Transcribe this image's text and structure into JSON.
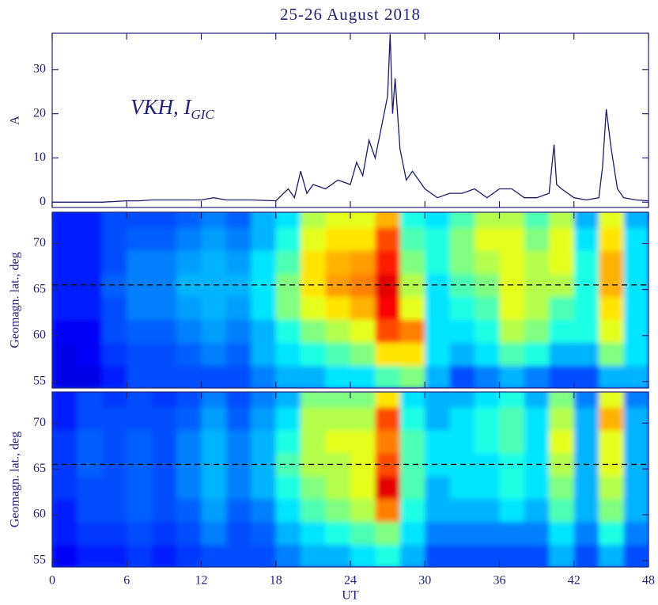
{
  "chart_data": [
    {
      "type": "line",
      "title": "25-26 August 2018",
      "ylabel": "A",
      "annotation": {
        "text": "VKH, I",
        "subscript": "GIC"
      },
      "xlim": [
        0,
        48
      ],
      "ylim": [
        -1.2,
        38.2
      ],
      "yticks": [
        0,
        10,
        20,
        30
      ],
      "color": "#1c1c6b",
      "x": [
        0,
        2,
        4,
        6,
        7,
        8,
        10,
        12,
        13,
        14,
        16,
        18,
        19,
        19.5,
        20,
        20.5,
        21,
        22,
        23,
        24,
        24.5,
        25,
        25.5,
        26,
        26.5,
        27,
        27.2,
        27.4,
        27.6,
        28,
        28.5,
        29,
        30,
        31,
        32,
        33,
        34,
        35,
        36,
        37,
        38,
        39,
        40,
        40.4,
        40.6,
        41,
        42,
        43,
        44,
        44.3,
        44.6,
        45,
        45.5,
        46,
        47,
        48
      ],
      "values": [
        0,
        0,
        0,
        0.3,
        0.3,
        0.5,
        0.5,
        0.5,
        1,
        0.5,
        0.5,
        0.3,
        3,
        1,
        7,
        2,
        4,
        3,
        5,
        4,
        9,
        6,
        14,
        10,
        17,
        24,
        38,
        20,
        28,
        12,
        5,
        7,
        3,
        1,
        2,
        2,
        3,
        1,
        3,
        3,
        1,
        1,
        2,
        13,
        4,
        3,
        1,
        0.5,
        1,
        8,
        21,
        12,
        3,
        1,
        0.5,
        0.3
      ]
    },
    {
      "type": "heatmap",
      "ylabel": "Geomagn. lat., deg",
      "xlim": [
        0,
        48
      ],
      "ylim": [
        54.3,
        73.4
      ],
      "yticks": [
        55,
        60,
        65,
        70
      ],
      "hline": 65.5,
      "colormap": "jet",
      "zlim": [
        0,
        1
      ],
      "x": [
        1,
        3,
        5,
        7,
        9,
        11,
        13,
        15,
        17,
        19,
        21,
        23,
        25,
        27,
        29,
        31,
        33,
        35,
        37,
        39,
        41,
        43,
        45,
        47
      ],
      "y": [
        55.5,
        58,
        60.5,
        63,
        65.5,
        68,
        70.5,
        73
      ],
      "values": [
        [
          0.1,
          0.1,
          0.15,
          0.2,
          0.2,
          0.2,
          0.2,
          0.2,
          0.25,
          0.3,
          0.3,
          0.35,
          0.35,
          0.45,
          0.5,
          0.3,
          0.2,
          0.25,
          0.3,
          0.25,
          0.2,
          0.2,
          0.3,
          0.3
        ],
        [
          0.1,
          0.12,
          0.18,
          0.2,
          0.2,
          0.22,
          0.25,
          0.22,
          0.3,
          0.35,
          0.4,
          0.45,
          0.5,
          0.65,
          0.65,
          0.35,
          0.3,
          0.35,
          0.45,
          0.4,
          0.3,
          0.3,
          0.5,
          0.35
        ],
        [
          0.12,
          0.12,
          0.2,
          0.22,
          0.22,
          0.25,
          0.28,
          0.25,
          0.3,
          0.4,
          0.5,
          0.55,
          0.6,
          0.8,
          0.75,
          0.35,
          0.35,
          0.4,
          0.55,
          0.5,
          0.4,
          0.4,
          0.6,
          0.35
        ],
        [
          0.15,
          0.15,
          0.2,
          0.25,
          0.25,
          0.28,
          0.3,
          0.28,
          0.35,
          0.5,
          0.6,
          0.65,
          0.7,
          0.88,
          0.6,
          0.35,
          0.4,
          0.45,
          0.6,
          0.55,
          0.45,
          0.4,
          0.65,
          0.35
        ],
        [
          0.15,
          0.15,
          0.22,
          0.25,
          0.25,
          0.3,
          0.3,
          0.3,
          0.35,
          0.5,
          0.65,
          0.72,
          0.75,
          0.9,
          0.55,
          0.35,
          0.45,
          0.5,
          0.6,
          0.55,
          0.55,
          0.4,
          0.7,
          0.35
        ],
        [
          0.15,
          0.15,
          0.2,
          0.25,
          0.25,
          0.28,
          0.3,
          0.28,
          0.35,
          0.45,
          0.65,
          0.7,
          0.72,
          0.85,
          0.5,
          0.4,
          0.5,
          0.55,
          0.6,
          0.55,
          0.6,
          0.4,
          0.7,
          0.35
        ],
        [
          0.15,
          0.15,
          0.2,
          0.22,
          0.22,
          0.25,
          0.28,
          0.25,
          0.3,
          0.4,
          0.6,
          0.65,
          0.65,
          0.8,
          0.45,
          0.4,
          0.5,
          0.6,
          0.6,
          0.5,
          0.6,
          0.35,
          0.65,
          0.35
        ],
        [
          0.15,
          0.15,
          0.2,
          0.2,
          0.2,
          0.22,
          0.25,
          0.22,
          0.3,
          0.35,
          0.55,
          0.6,
          0.6,
          0.7,
          0.4,
          0.35,
          0.45,
          0.55,
          0.55,
          0.45,
          0.55,
          0.3,
          0.6,
          0.3
        ]
      ]
    },
    {
      "type": "heatmap",
      "ylabel": "Geomagn. lat., deg",
      "xlabel": "UT",
      "xlim": [
        0,
        48
      ],
      "ylim": [
        54.3,
        73.4
      ],
      "xticks": [
        0,
        6,
        12,
        18,
        24,
        30,
        36,
        42,
        48
      ],
      "yticks": [
        55,
        60,
        65,
        70
      ],
      "hline": 65.5,
      "colormap": "jet",
      "zlim": [
        0,
        1
      ],
      "x": [
        1,
        3,
        5,
        7,
        9,
        11,
        13,
        15,
        17,
        19,
        21,
        23,
        25,
        27,
        29,
        31,
        33,
        35,
        37,
        39,
        41,
        43,
        45,
        47
      ],
      "y": [
        55.5,
        58,
        60.5,
        63,
        65.5,
        68,
        70.5,
        73
      ],
      "values": [
        [
          0.12,
          0.15,
          0.15,
          0.18,
          0.15,
          0.18,
          0.2,
          0.2,
          0.2,
          0.25,
          0.3,
          0.3,
          0.35,
          0.4,
          0.3,
          0.2,
          0.2,
          0.2,
          0.2,
          0.2,
          0.3,
          0.2,
          0.3,
          0.2
        ],
        [
          0.15,
          0.18,
          0.18,
          0.2,
          0.18,
          0.2,
          0.25,
          0.2,
          0.22,
          0.3,
          0.35,
          0.4,
          0.45,
          0.5,
          0.35,
          0.25,
          0.25,
          0.25,
          0.25,
          0.25,
          0.35,
          0.25,
          0.4,
          0.25
        ],
        [
          0.15,
          0.2,
          0.2,
          0.22,
          0.2,
          0.22,
          0.28,
          0.22,
          0.25,
          0.35,
          0.45,
          0.5,
          0.55,
          0.75,
          0.4,
          0.3,
          0.3,
          0.3,
          0.35,
          0.3,
          0.45,
          0.3,
          0.5,
          0.3
        ],
        [
          0.18,
          0.2,
          0.2,
          0.22,
          0.2,
          0.25,
          0.3,
          0.25,
          0.3,
          0.4,
          0.5,
          0.55,
          0.6,
          0.9,
          0.45,
          0.3,
          0.35,
          0.35,
          0.4,
          0.35,
          0.5,
          0.3,
          0.55,
          0.3
        ],
        [
          0.18,
          0.22,
          0.2,
          0.22,
          0.2,
          0.25,
          0.3,
          0.25,
          0.3,
          0.45,
          0.55,
          0.55,
          0.6,
          0.8,
          0.45,
          0.35,
          0.35,
          0.35,
          0.4,
          0.35,
          0.55,
          0.3,
          0.6,
          0.3
        ],
        [
          0.18,
          0.22,
          0.2,
          0.22,
          0.2,
          0.25,
          0.3,
          0.25,
          0.3,
          0.4,
          0.55,
          0.6,
          0.6,
          0.75,
          0.45,
          0.35,
          0.35,
          0.4,
          0.45,
          0.35,
          0.6,
          0.3,
          0.6,
          0.3
        ],
        [
          0.15,
          0.2,
          0.2,
          0.2,
          0.2,
          0.22,
          0.28,
          0.22,
          0.28,
          0.35,
          0.55,
          0.55,
          0.55,
          0.8,
          0.4,
          0.3,
          0.35,
          0.4,
          0.45,
          0.35,
          0.55,
          0.3,
          0.7,
          0.3
        ],
        [
          0.15,
          0.2,
          0.18,
          0.2,
          0.18,
          0.2,
          0.25,
          0.2,
          0.25,
          0.3,
          0.5,
          0.5,
          0.5,
          0.65,
          0.35,
          0.3,
          0.3,
          0.35,
          0.4,
          0.3,
          0.5,
          0.25,
          0.6,
          0.25
        ]
      ]
    }
  ]
}
